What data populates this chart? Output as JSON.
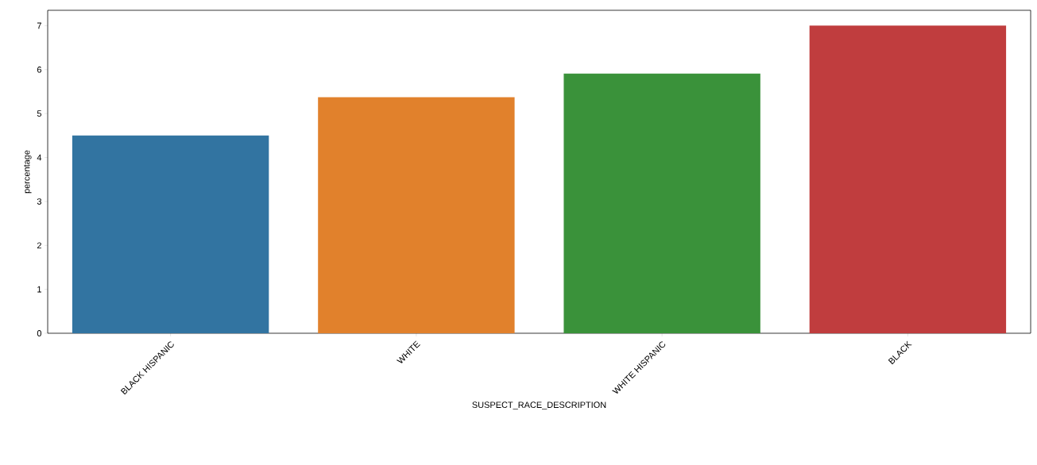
{
  "chart_data": {
    "type": "bar",
    "xlabel": "SUSPECT_RACE_DESCRIPTION",
    "ylabel": "percentage",
    "categories": [
      "BLACK HISPANIC",
      "WHITE",
      "WHITE HISPANIC",
      "BLACK"
    ],
    "values": [
      4.5,
      5.37,
      5.91,
      7.0
    ],
    "colors": [
      "#3274a1",
      "#e1812c",
      "#3a923a",
      "#c03d3e"
    ],
    "ylim": [
      0,
      7.35
    ],
    "yticks": [
      0,
      1,
      2,
      3,
      4,
      5,
      6,
      7
    ],
    "grid": false
  }
}
